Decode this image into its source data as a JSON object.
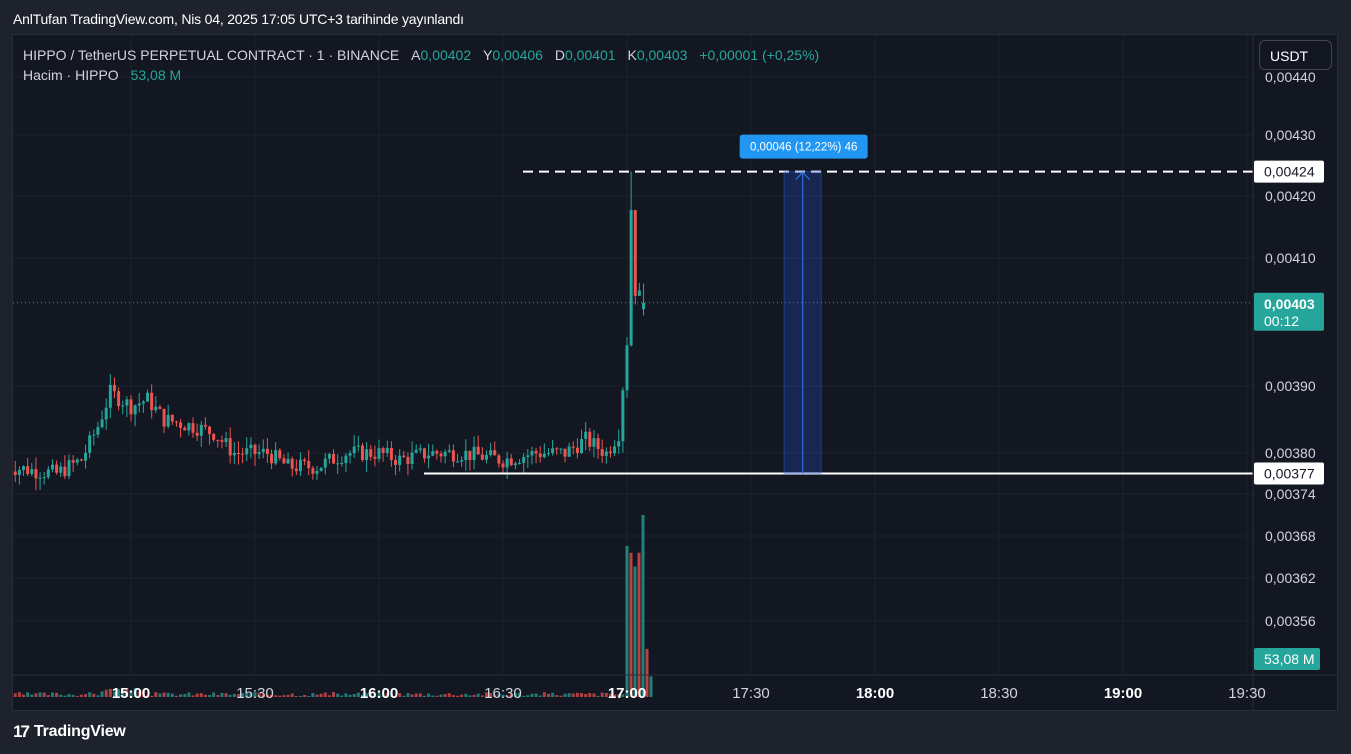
{
  "publication": "AnlTufan TradingView.com, Nis 04, 2025 17:05 UTC+3 tarihinde yayınlandı",
  "legend": {
    "symbol": "HIPPO / TetherUS PERPETUAL CONTRACT · 1 · BINANCE",
    "open_label": "A",
    "open": "0,00402",
    "high_label": "Y",
    "high": "0,00406",
    "low_label": "D",
    "low": "0,00401",
    "close_label": "K",
    "close": "0,00403",
    "change": "+0,00001 (+0,25%)",
    "volume_label": "Hacim · HIPPO",
    "volume": "53,08 M"
  },
  "currency_button": "USDT",
  "footer": {
    "logo": "17",
    "brand": "TradingView"
  },
  "colors": {
    "up": "#26a69a",
    "down": "#ef5350",
    "background": "#131722",
    "measure": "#2962ff",
    "grid": "#1e222d"
  },
  "chart_data": {
    "type": "candlestick",
    "interval": "1 minute",
    "price_axis": {
      "labels": [
        "0,00440",
        "0,00430",
        "0,00420",
        "0,00410",
        "0,00390",
        "0,00380",
        "0,00374",
        "0,00368",
        "0,00362",
        "0,00356"
      ],
      "ylim": [
        0.00353,
        0.00442
      ]
    },
    "time_axis": {
      "labels": [
        "15:00",
        "15:30",
        "16:00",
        "16:30",
        "17:00",
        "17:30",
        "18:00",
        "18:30",
        "19:00",
        "19:30"
      ],
      "bold": [
        "15:00",
        "16:00",
        "17:00",
        "18:00",
        "19:00"
      ],
      "start": "14:30",
      "end": "19:35"
    },
    "last_price": {
      "value": 0.00403,
      "label": "0,00403",
      "countdown": "00:12"
    },
    "horizontal_lines": [
      {
        "value": 0.00424,
        "label": "0,00424",
        "style": "dashed"
      },
      {
        "value": 0.00377,
        "label": "0,00377",
        "style": "solid"
      }
    ],
    "measure": {
      "from": 0.00377,
      "to": 0.00424,
      "label": "0,00046 (12,22%) 46",
      "time_from": "17:38",
      "time_to": "17:47"
    },
    "volume": {
      "last_label": "53,08 M",
      "spike_bars_m": [
        44,
        42,
        38,
        42,
        53,
        14,
        6
      ]
    },
    "price_path_keypoints": [
      [
        "14:30",
        0.00378
      ],
      [
        "14:42",
        0.00377
      ],
      [
        "14:48",
        0.00379
      ],
      [
        "14:52",
        0.00384
      ],
      [
        "14:55",
        0.00389
      ],
      [
        "15:00",
        0.00387
      ],
      [
        "15:04",
        0.00388
      ],
      [
        "15:08",
        0.00385
      ],
      [
        "15:15",
        0.00384
      ],
      [
        "15:20",
        0.00383
      ],
      [
        "15:25",
        0.0038
      ],
      [
        "15:33",
        0.0038
      ],
      [
        "15:38",
        0.00378
      ],
      [
        "15:45",
        0.00378
      ],
      [
        "15:52",
        0.0038
      ],
      [
        "16:00",
        0.0038
      ],
      [
        "16:05",
        0.00379
      ],
      [
        "16:12",
        0.0038
      ],
      [
        "16:20",
        0.0038
      ],
      [
        "16:30",
        0.00379
      ],
      [
        "16:38",
        0.0038
      ],
      [
        "16:45",
        0.0038
      ],
      [
        "16:50",
        0.00382
      ],
      [
        "16:55",
        0.0038
      ],
      [
        "16:58",
        0.00383
      ],
      [
        "17:00",
        0.00397
      ],
      [
        "17:01",
        0.00418
      ],
      [
        "17:02",
        0.00405
      ],
      [
        "17:04",
        0.00403
      ]
    ]
  }
}
